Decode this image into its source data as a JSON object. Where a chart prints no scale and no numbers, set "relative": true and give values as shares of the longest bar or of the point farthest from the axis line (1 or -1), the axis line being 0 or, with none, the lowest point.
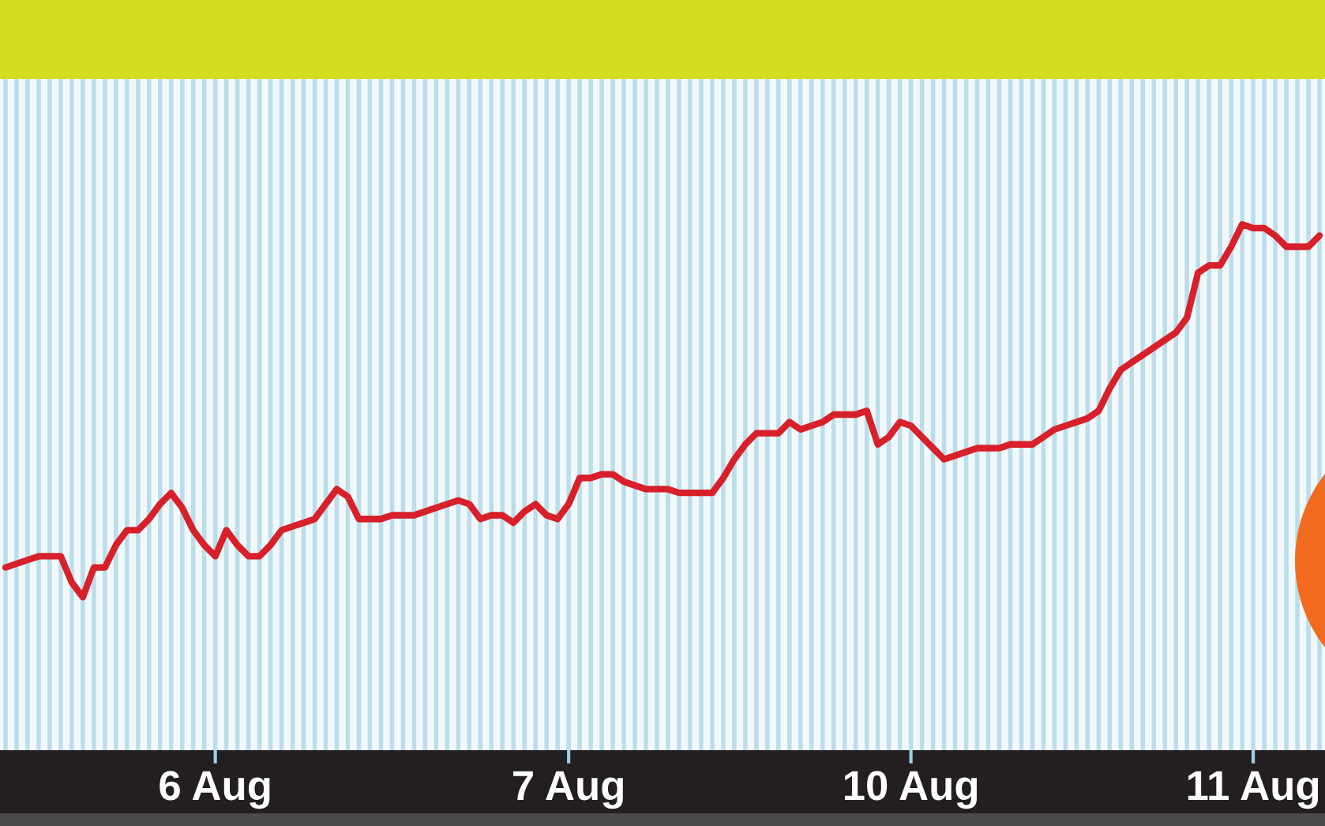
{
  "chart_data": {
    "type": "line",
    "relative": true,
    "grid": "x",
    "color": "#d8202a",
    "categories": [
      null,
      null,
      null,
      null,
      null,
      null,
      null,
      null,
      null,
      null,
      null,
      null,
      null,
      null,
      null,
      null,
      null,
      null,
      null,
      "6 Aug",
      null,
      null,
      null,
      null,
      null,
      null,
      null,
      null,
      null,
      null,
      null,
      null,
      null,
      null,
      null,
      null,
      null,
      null,
      null,
      null,
      null,
      null,
      null,
      null,
      null,
      null,
      null,
      null,
      null,
      null,
      null,
      "7 Aug",
      null,
      null,
      null,
      null,
      null,
      null,
      null,
      null,
      null,
      null,
      null,
      null,
      null,
      null,
      null,
      null,
      null,
      null,
      null,
      null,
      null,
      null,
      null,
      null,
      null,
      null,
      null,
      null,
      null,
      null,
      "10 Aug",
      null,
      null,
      null,
      null,
      null,
      null,
      null,
      null,
      null,
      null,
      null,
      null,
      null,
      null,
      null,
      null,
      null,
      null,
      null,
      null,
      null,
      null,
      null,
      null,
      null,
      null,
      null,
      null,
      null,
      null,
      "11 Aug",
      null,
      null,
      null,
      null,
      null,
      null
    ],
    "values": [
      0.08,
      0.09,
      0.1,
      0.11,
      0.11,
      0.11,
      0.04,
      0,
      0.08,
      0.08,
      0.14,
      0.18,
      0.18,
      0.21,
      0.25,
      0.28,
      0.24,
      0.18,
      0.14,
      0.11,
      0.18,
      0.14,
      0.11,
      0.11,
      0.14,
      0.18,
      0.19,
      0.2,
      0.21,
      0.25,
      0.29,
      0.27,
      0.21,
      0.21,
      0.21,
      0.22,
      0.22,
      0.22,
      0.23,
      0.24,
      0.25,
      0.26,
      0.25,
      0.21,
      0.22,
      0.22,
      0.2,
      0.23,
      0.25,
      0.22,
      0.21,
      0.25,
      0.32,
      0.32,
      0.33,
      0.33,
      0.31,
      0.3,
      0.29,
      0.29,
      0.29,
      0.28,
      0.28,
      0.28,
      0.28,
      0.32,
      0.37,
      0.41,
      0.44,
      0.44,
      0.44,
      0.47,
      0.45,
      0.46,
      0.47,
      0.49,
      0.49,
      0.49,
      0.5,
      0.41,
      0.43,
      0.47,
      0.46,
      0.43,
      0.4,
      0.37,
      0.38,
      0.39,
      0.4,
      0.4,
      0.4,
      0.41,
      0.41,
      0.41,
      0.43,
      0.45,
      0.46,
      0.47,
      0.48,
      0.5,
      0.56,
      0.61,
      0.63,
      0.65,
      0.67,
      0.69,
      0.71,
      0.75,
      0.87,
      0.89,
      0.89,
      0.94,
      1,
      0.99,
      0.99,
      0.97,
      0.94,
      0.94,
      0.94,
      0.97
    ]
  }
}
